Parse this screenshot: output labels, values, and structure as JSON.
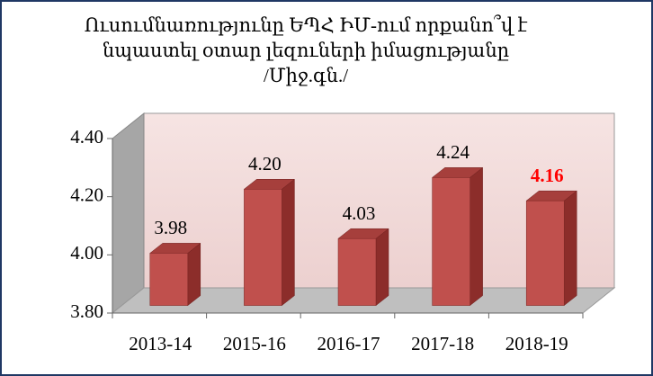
{
  "chart_data": {
    "type": "bar3d",
    "title": [
      "Ուսումնառությունը ԵՊՀ ԻՄ-ում որքանո՞վ է",
      "նպաստել  օտար լեզուների իմացությանը",
      "/Միջ.գն./"
    ],
    "categories": [
      "2013-14",
      "2015-16",
      "2016-17",
      "2017-18",
      "2018-19"
    ],
    "values": [
      3.98,
      4.2,
      4.03,
      4.24,
      4.16
    ],
    "value_labels": [
      "3.98",
      "4.20",
      "4.03",
      "4.24",
      "4.16"
    ],
    "value_label_colors": [
      "#000000",
      "#000000",
      "#000000",
      "#000000",
      "#ff0000"
    ],
    "value_label_bold": [
      false,
      false,
      false,
      false,
      true
    ],
    "color": "#c0504d",
    "ylim": [
      3.8,
      4.4
    ],
    "yticks": [
      {
        "value": 3.8,
        "label": "3.80"
      },
      {
        "value": 4.0,
        "label": "4.00"
      },
      {
        "value": 4.2,
        "label": "4.20"
      },
      {
        "value": 4.4,
        "label": "4.40"
      }
    ],
    "grid": false
  }
}
